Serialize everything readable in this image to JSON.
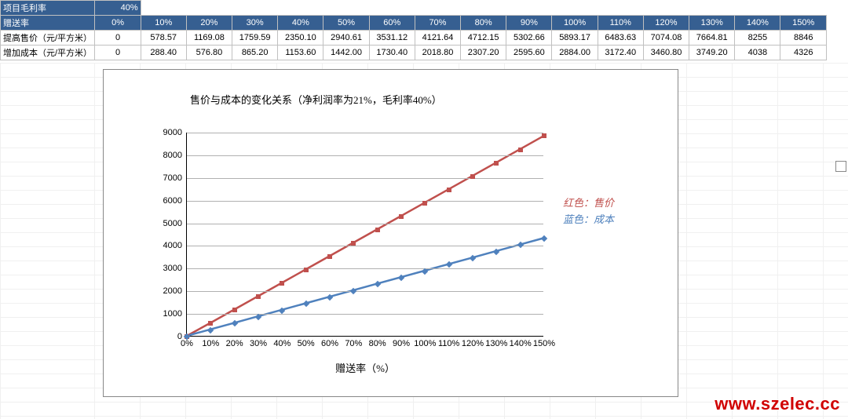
{
  "table": {
    "gross_margin_label": "项目毛利率",
    "gross_margin_value": "40%",
    "gift_rate_label": "赠送率",
    "columns": [
      "0%",
      "10%",
      "20%",
      "30%",
      "40%",
      "50%",
      "60%",
      "70%",
      "80%",
      "90%",
      "100%",
      "110%",
      "120%",
      "130%",
      "140%",
      "150%"
    ],
    "rows": [
      {
        "label": "提高售价（元/平方米）",
        "values": [
          "0",
          "578.57",
          "1169.08",
          "1759.59",
          "2350.10",
          "2940.61",
          "3531.12",
          "4121.64",
          "4712.15",
          "5302.66",
          "5893.17",
          "6483.63",
          "7074.08",
          "7664.81",
          "8255",
          "8846"
        ]
      },
      {
        "label": "增加成本（元/平方米）",
        "values": [
          "0",
          "288.40",
          "576.80",
          "865.20",
          "1153.60",
          "1442.00",
          "1730.40",
          "2018.80",
          "2307.20",
          "2595.60",
          "2884.00",
          "3172.40",
          "3460.80",
          "3749.20",
          "4038",
          "4326"
        ]
      }
    ],
    "header_bg": "#365f91",
    "header_fg": "#ffffff",
    "cell_border": "#c0c0c0"
  },
  "chart": {
    "type": "line",
    "title": "售价与成本的变化关系（净利润率为21%，毛利率40%）",
    "title_fontsize": 13,
    "x_categories": [
      "0%",
      "10%",
      "20%",
      "30%",
      "40%",
      "50%",
      "60%",
      "70%",
      "80%",
      "90%",
      "100%",
      "110%",
      "120%",
      "130%",
      "140%",
      "150%"
    ],
    "x_label": "赠送率（%）",
    "x_label_fontsize": 13,
    "ylim": [
      0,
      9000
    ],
    "ytick_step": 1000,
    "yticks": [
      0,
      1000,
      2000,
      3000,
      4000,
      5000,
      6000,
      7000,
      8000,
      9000
    ],
    "grid_color": "#b0b0b0",
    "background_color": "#ffffff",
    "plot_border_color": "#000000",
    "line_width": 2.5,
    "marker_size": 6,
    "series": [
      {
        "name": "售价",
        "color": "#c0504d",
        "marker": "square",
        "values": [
          0,
          578.57,
          1169.08,
          1759.59,
          2350.1,
          2940.61,
          3531.12,
          4121.64,
          4712.15,
          5302.66,
          5893.17,
          6483.63,
          7074.08,
          7664.81,
          8255,
          8846
        ]
      },
      {
        "name": "成本",
        "color": "#4f81bd",
        "marker": "diamond",
        "values": [
          0,
          288.4,
          576.8,
          865.2,
          1153.6,
          1442.0,
          1730.4,
          2018.8,
          2307.2,
          2595.6,
          2884.0,
          3172.4,
          3460.8,
          3749.2,
          4038,
          4326
        ]
      }
    ],
    "legend_items": [
      {
        "text": "红色：售价",
        "color": "#c0504d"
      },
      {
        "text": "蓝色：成本",
        "color": "#4f81bd"
      }
    ]
  },
  "watermark": "www.szelec.cc"
}
